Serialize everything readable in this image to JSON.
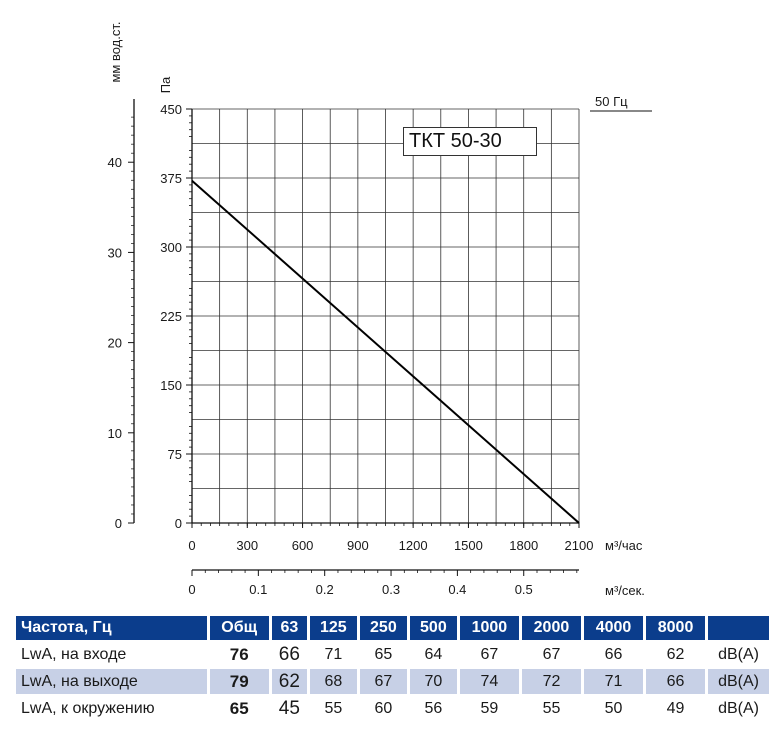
{
  "chart_data": {
    "type": "line",
    "x_axis": {
      "label": "м³/час",
      "ticks": [
        0,
        300,
        600,
        900,
        1200,
        1500,
        1800,
        2100
      ],
      "range": [
        0,
        2100
      ]
    },
    "x_axis_secondary": {
      "label": "м³/сек.",
      "ticks": [
        0,
        0.1,
        0.2,
        0.3,
        0.4,
        0.5
      ],
      "tick_labels": [
        "0",
        "0.1",
        "0.2",
        "0.3",
        "0.4",
        "0.5"
      ],
      "range": [
        0,
        0.5833
      ]
    },
    "y_axis": {
      "label": "Па",
      "ticks": [
        0,
        75,
        150,
        225,
        300,
        375,
        450
      ],
      "range": [
        0,
        450
      ]
    },
    "y_axis_secondary": {
      "label": "мм вод.ст.",
      "ticks": [
        0,
        10,
        20,
        30,
        40
      ],
      "range": [
        0,
        45.9
      ]
    },
    "grid": true,
    "series": [
      {
        "name": "50 Гц",
        "x": [
          0,
          2100
        ],
        "y": [
          372,
          0
        ]
      }
    ],
    "annotations": [
      "ТКТ 50-30"
    ]
  },
  "model": "ТКТ 50-30",
  "frequency_label": "50 Гц",
  "table": {
    "headers": [
      "Частота, Гц",
      "Общ",
      "63",
      "125",
      "250",
      "500",
      "1000",
      "2000",
      "4000",
      "8000",
      ""
    ],
    "unit": "dB(A)",
    "rows": [
      {
        "label": "LwA, на входе",
        "total": "76",
        "values": [
          "66",
          "71",
          "65",
          "64",
          "67",
          "67",
          "66",
          "62"
        ]
      },
      {
        "label": "LwA, на выходе",
        "total": "79",
        "values": [
          "62",
          "68",
          "67",
          "70",
          "74",
          "72",
          "71",
          "66"
        ]
      },
      {
        "label": "LwA, к окружению",
        "total": "65",
        "values": [
          "45",
          "55",
          "60",
          "56",
          "59",
          "55",
          "50",
          "49"
        ]
      }
    ]
  }
}
